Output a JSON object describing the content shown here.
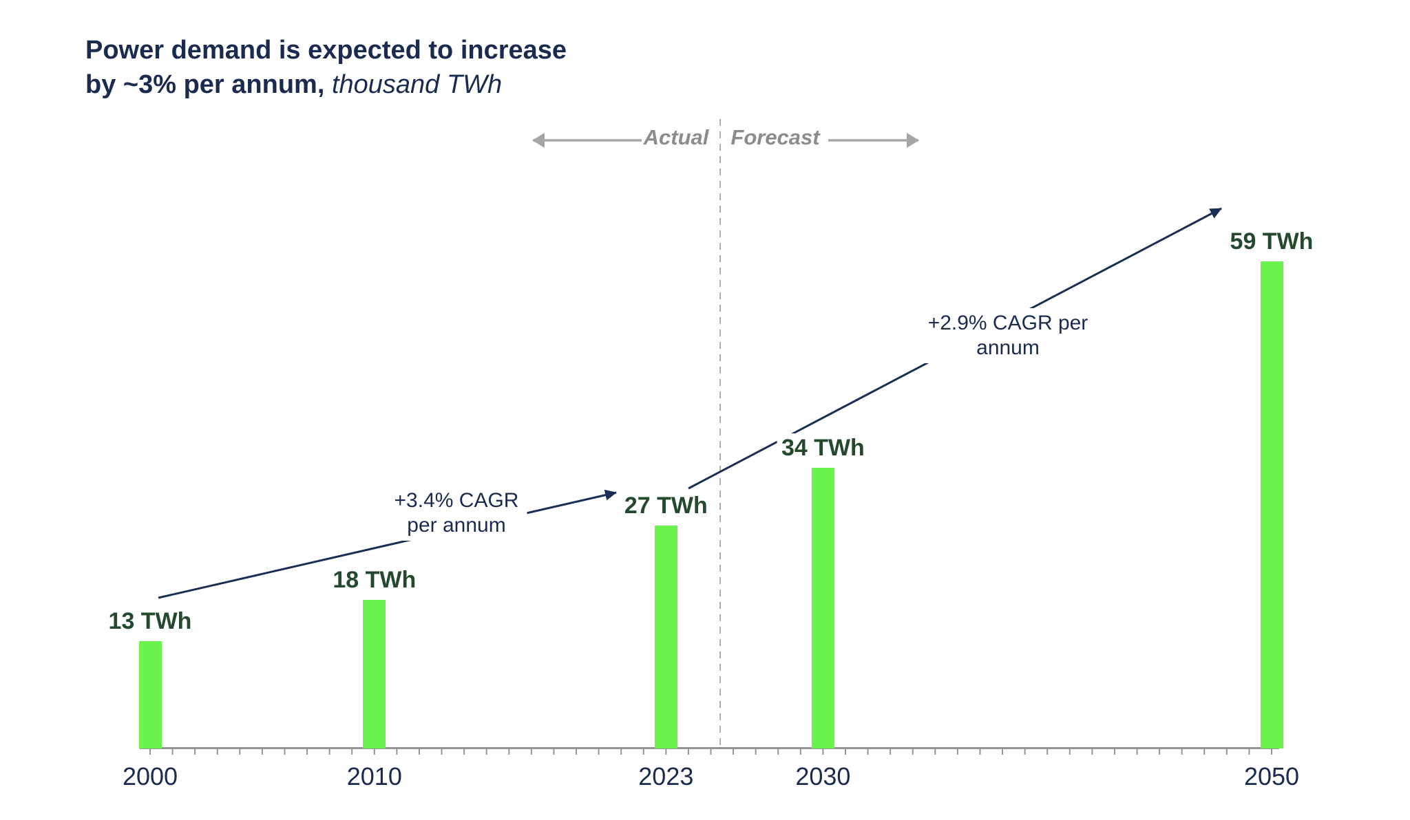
{
  "header": {
    "title_line1": "Power demand is expected to increase",
    "title_line2_bold": "by ~3% per annum,",
    "title_line2_italic": "thousand TWh"
  },
  "timeline": {
    "actual_label": "Actual",
    "forecast_label": "Forecast"
  },
  "annotations": {
    "actual_cagr": {
      "line1": "+3.4% CAGR",
      "line2": "per annum"
    },
    "forecast_cagr": {
      "line1": "+2.9% CAGR per",
      "line2": "annum"
    }
  },
  "chart_data": {
    "type": "bar",
    "title": "Power demand is expected to increase by ~3% per annum",
    "units": "thousand TWh",
    "categories": [
      "2000",
      "2010",
      "2023",
      "2030",
      "2050"
    ],
    "values": [
      13,
      18,
      27,
      34,
      59
    ],
    "value_labels": [
      "13 TWh",
      "18 TWh",
      "27 TWh",
      "34 TWh",
      "59 TWh"
    ],
    "ylim": [
      0,
      60
    ],
    "grid": false,
    "legend": "none",
    "x_axis": {
      "start_year": 2000,
      "end_year": 2050,
      "tick_interval_years": 1
    },
    "segments": {
      "actual_years": [
        2000,
        2010,
        2023
      ],
      "forecast_years": [
        2030,
        2050
      ]
    },
    "growth_annotations": [
      {
        "label": "+3.4% CAGR per annum",
        "span": "2000-2023"
      },
      {
        "label": "+2.9% CAGR per annum",
        "span": "2023-2050"
      }
    ]
  },
  "colors": {
    "bar_green": "#6CF24D",
    "label_green": "#25492F",
    "navy": "#1B2B50",
    "arrow_navy": "#1B2F55",
    "axis_gray": "#949494",
    "muted_gray": "#8C8C8C",
    "gray_arrow": "#A6A6A6",
    "dashed_gray": "#AFAFAF"
  }
}
